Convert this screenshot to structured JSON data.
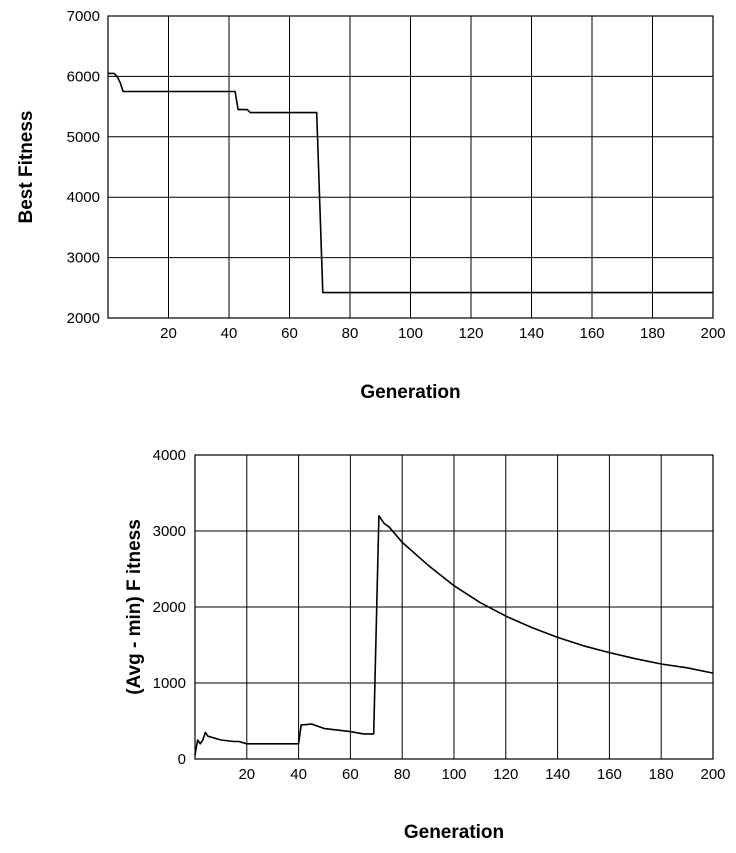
{
  "chart_data": [
    {
      "type": "line",
      "title": "",
      "xlabel": "Generation",
      "ylabel": "Best Fitness",
      "xlim": [
        0,
        200
      ],
      "ylim": [
        2000,
        7000
      ],
      "xticks": [
        20,
        40,
        60,
        80,
        100,
        120,
        140,
        160,
        180,
        200
      ],
      "yticks": [
        2000,
        3000,
        4000,
        5000,
        6000,
        7000
      ],
      "grid": true,
      "series": [
        {
          "x": [
            0,
            2,
            3,
            4,
            5,
            42,
            43,
            46,
            47,
            69,
            71,
            200
          ],
          "y": [
            6050,
            6050,
            6000,
            5900,
            5750,
            5750,
            5450,
            5450,
            5400,
            5400,
            2420,
            2420
          ]
        }
      ]
    },
    {
      "type": "line",
      "title": "",
      "xlabel": "Generation",
      "ylabel": "(Avg - min) F itness",
      "xlim": [
        0,
        200
      ],
      "ylim": [
        0,
        4000
      ],
      "xticks": [
        20,
        40,
        60,
        80,
        100,
        120,
        140,
        160,
        180,
        200
      ],
      "yticks": [
        0,
        1000,
        2000,
        3000,
        4000
      ],
      "grid": true,
      "series": [
        {
          "x": [
            0,
            1,
            2,
            3,
            4,
            5,
            7,
            10,
            15,
            17,
            20,
            25,
            30,
            35,
            38,
            40,
            41,
            42,
            45,
            50,
            55,
            60,
            65,
            67,
            69,
            71,
            73,
            75,
            80,
            90,
            100,
            110,
            120,
            130,
            140,
            150,
            160,
            170,
            180,
            190,
            200
          ],
          "y": [
            50,
            250,
            200,
            250,
            350,
            300,
            280,
            250,
            230,
            230,
            200,
            200,
            200,
            200,
            200,
            200,
            450,
            450,
            460,
            400,
            380,
            360,
            330,
            330,
            330,
            3200,
            3100,
            3050,
            2850,
            2550,
            2280,
            2060,
            1880,
            1730,
            1600,
            1490,
            1400,
            1320,
            1250,
            1200,
            1130
          ]
        }
      ]
    }
  ]
}
